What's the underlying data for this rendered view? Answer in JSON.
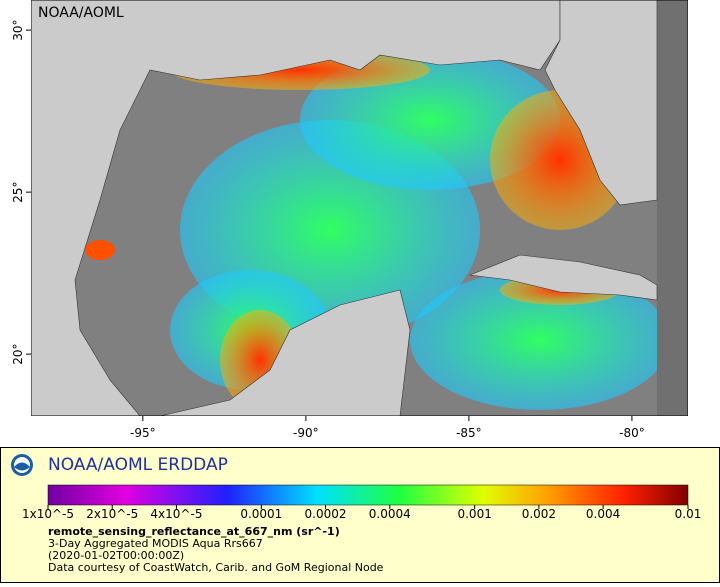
{
  "header": {
    "corner_label": "NOAA/AOML"
  },
  "map": {
    "lonlim": [
      -98.43,
      -78.28
    ],
    "latlim": [
      18.09,
      30.93
    ],
    "lon_ticks": [
      {
        "value": -95,
        "label": "-95°"
      },
      {
        "value": -90,
        "label": "-90°"
      },
      {
        "value": -85,
        "label": "-85°"
      },
      {
        "value": -80,
        "label": "-80°"
      }
    ],
    "lat_ticks": [
      {
        "value": 30,
        "label": "30°"
      },
      {
        "value": 25,
        "label": "25°"
      },
      {
        "value": 20,
        "label": "20°"
      }
    ]
  },
  "legend": {
    "title": "NOAA/AOML ERDDAP",
    "colorbar": {
      "scale": "log",
      "range": [
        1e-05,
        0.01
      ],
      "ticks": [
        {
          "value": 1e-05,
          "label": "1x10^-5"
        },
        {
          "value": 2e-05,
          "label": "2x10^-5"
        },
        {
          "value": 4e-05,
          "label": "4x10^-5"
        },
        0.0001,
        0.0002,
        0.0004,
        0.001,
        0.002,
        0.004,
        0.01
      ]
    },
    "variable": "remote_sensing_reflectance_at_667_nm (sr^-1)",
    "dataset": "3-Day Aggregated MODIS Aqua Rrs667",
    "time": "(2020-01-02T00:00:00Z)",
    "credit": "Data courtesy of CoastWatch, Carib. and GoM Regional Node"
  }
}
